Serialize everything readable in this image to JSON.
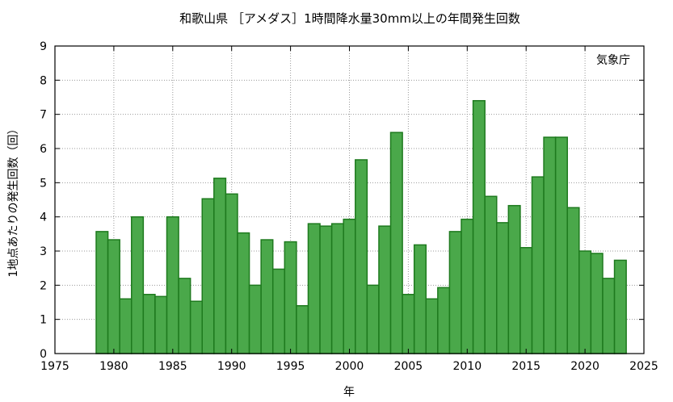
{
  "chart_data": {
    "type": "bar",
    "title": "和歌山県 ［アメダス］1時間降水量30mm以上の年間発生回数",
    "xlabel": "年",
    "ylabel": "1地点あたりの発生回数（回）",
    "credit": "気象庁",
    "xlim": [
      1975,
      2025
    ],
    "ylim": [
      0,
      9
    ],
    "xticks": [
      1975,
      1980,
      1985,
      1990,
      1995,
      2000,
      2005,
      2010,
      2015,
      2020,
      2025
    ],
    "yticks": [
      0,
      1,
      2,
      3,
      4,
      5,
      6,
      7,
      8,
      9
    ],
    "grid": true,
    "color": "#4aa84a",
    "edge_color": "#1e7a1e",
    "x": [
      1979,
      1980,
      1981,
      1982,
      1983,
      1984,
      1985,
      1986,
      1987,
      1988,
      1989,
      1990,
      1991,
      1992,
      1993,
      1994,
      1995,
      1996,
      1997,
      1998,
      1999,
      2000,
      2001,
      2002,
      2003,
      2004,
      2005,
      2006,
      2007,
      2008,
      2009,
      2010,
      2011,
      2012,
      2013,
      2014,
      2015,
      2016,
      2017,
      2018,
      2019,
      2020,
      2021,
      2022,
      2023
    ],
    "values": [
      3.57,
      3.33,
      1.6,
      4.0,
      1.73,
      1.67,
      4.0,
      2.2,
      1.53,
      4.53,
      5.13,
      4.67,
      3.53,
      2.0,
      3.33,
      2.47,
      3.27,
      1.4,
      3.8,
      3.73,
      3.8,
      3.93,
      5.67,
      2.0,
      3.73,
      6.47,
      1.73,
      3.18,
      1.6,
      1.93,
      3.57,
      3.93,
      7.4,
      4.6,
      3.83,
      4.33,
      3.1,
      5.17,
      6.33,
      6.33,
      4.27,
      3.0,
      2.93,
      2.2,
      2.73
    ]
  }
}
